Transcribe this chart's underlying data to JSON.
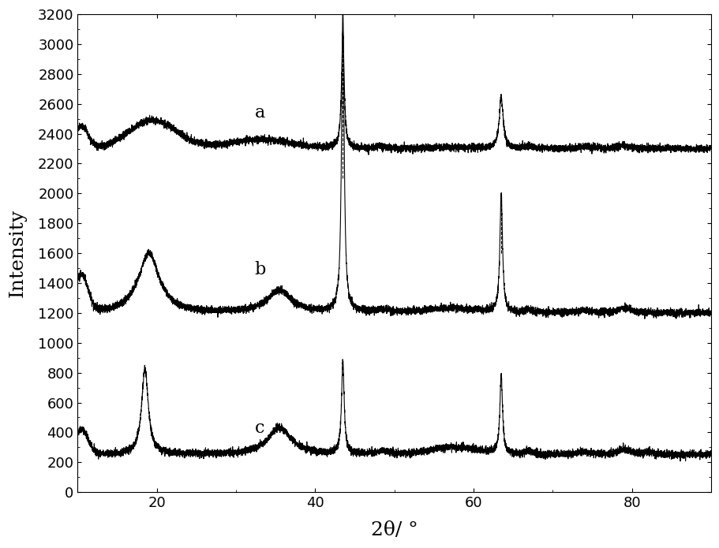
{
  "xlim": [
    10,
    90
  ],
  "ylim": [
    0,
    3200
  ],
  "xlabel": "2θ/ °",
  "ylabel": "Intensity",
  "xticks": [
    20,
    40,
    60,
    80
  ],
  "yticks": [
    0,
    200,
    400,
    600,
    800,
    1000,
    1200,
    1400,
    1600,
    1800,
    2000,
    2200,
    2400,
    2600,
    2800,
    3000,
    3200
  ],
  "curve_color": "#000000",
  "label_a": "a",
  "label_b": "b",
  "label_c": "c",
  "noise_scale": 12,
  "figsize": [
    9.12,
    6.95
  ],
  "dpi": 100
}
